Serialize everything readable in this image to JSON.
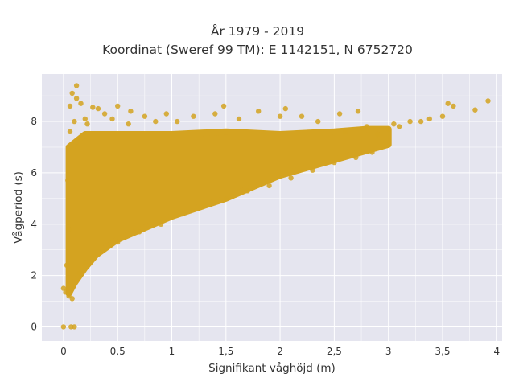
{
  "chart_data": {
    "type": "scatter",
    "title": "År 1979 - 2019",
    "subtitle": "Koordinat (Sweref 99 TM): E 1142151, N 6752720",
    "xlabel": "Signifikant våghöjd (m)",
    "ylabel": "Vågperiod (s)",
    "xlim": [
      -0.2,
      4.05
    ],
    "ylim": [
      -0.55,
      9.85
    ],
    "x_ticks": [
      0,
      0.5,
      1,
      1.5,
      2,
      2.5,
      3,
      3.5,
      4
    ],
    "x_tick_labels": [
      "0",
      "0,5",
      "1",
      "1,5",
      "2",
      "2,5",
      "3",
      "3,5",
      "4"
    ],
    "y_ticks": [
      0,
      2,
      4,
      6,
      8
    ],
    "y_tick_labels": [
      "0",
      "2",
      "4",
      "6",
      "8"
    ],
    "grid": true,
    "colors": {
      "marker": "#d4a320",
      "plot_background": "#e5e5ef",
      "grid": "#ffffff"
    },
    "points": [
      {
        "x": 0.0,
        "y": 1.5
      },
      {
        "x": 0.0,
        "y": 0.0
      },
      {
        "x": 0.02,
        "y": 1.35
      },
      {
        "x": 0.03,
        "y": 2.4
      },
      {
        "x": 0.05,
        "y": 1.2
      },
      {
        "x": 0.05,
        "y": 3.8
      },
      {
        "x": 0.04,
        "y": 5.7
      },
      {
        "x": 0.06,
        "y": 7.6
      },
      {
        "x": 0.07,
        "y": 0.0
      },
      {
        "x": 0.08,
        "y": 9.1
      },
      {
        "x": 0.06,
        "y": 8.6
      },
      {
        "x": 0.08,
        "y": 1.1
      },
      {
        "x": 0.1,
        "y": 8.0
      },
      {
        "x": 0.1,
        "y": 0.0
      },
      {
        "x": 0.12,
        "y": 9.4
      },
      {
        "x": 0.12,
        "y": 8.9
      },
      {
        "x": 0.13,
        "y": 7.0
      },
      {
        "x": 0.15,
        "y": 2.1
      },
      {
        "x": 0.16,
        "y": 8.7
      },
      {
        "x": 0.2,
        "y": 8.1
      },
      {
        "x": 0.2,
        "y": 2.5
      },
      {
        "x": 0.22,
        "y": 7.9
      },
      {
        "x": 0.27,
        "y": 8.55
      },
      {
        "x": 0.3,
        "y": 2.8
      },
      {
        "x": 0.32,
        "y": 8.5
      },
      {
        "x": 0.38,
        "y": 8.3
      },
      {
        "x": 0.45,
        "y": 8.1
      },
      {
        "x": 0.5,
        "y": 8.6
      },
      {
        "x": 0.5,
        "y": 3.3
      },
      {
        "x": 0.6,
        "y": 7.9
      },
      {
        "x": 0.62,
        "y": 8.4
      },
      {
        "x": 0.7,
        "y": 3.7
      },
      {
        "x": 0.75,
        "y": 8.2
      },
      {
        "x": 0.85,
        "y": 8.0
      },
      {
        "x": 0.9,
        "y": 4.0
      },
      {
        "x": 0.95,
        "y": 8.3
      },
      {
        "x": 1.05,
        "y": 8.0
      },
      {
        "x": 1.1,
        "y": 4.4
      },
      {
        "x": 1.2,
        "y": 8.2
      },
      {
        "x": 1.3,
        "y": 4.7
      },
      {
        "x": 1.4,
        "y": 8.3
      },
      {
        "x": 1.48,
        "y": 8.6
      },
      {
        "x": 1.5,
        "y": 5.0
      },
      {
        "x": 1.62,
        "y": 8.1
      },
      {
        "x": 1.7,
        "y": 5.3
      },
      {
        "x": 1.8,
        "y": 8.4
      },
      {
        "x": 1.9,
        "y": 5.5
      },
      {
        "x": 2.0,
        "y": 8.2
      },
      {
        "x": 2.05,
        "y": 8.5
      },
      {
        "x": 2.1,
        "y": 5.8
      },
      {
        "x": 2.2,
        "y": 8.2
      },
      {
        "x": 2.3,
        "y": 6.1
      },
      {
        "x": 2.35,
        "y": 8.0
      },
      {
        "x": 2.5,
        "y": 6.4
      },
      {
        "x": 2.55,
        "y": 8.3
      },
      {
        "x": 2.6,
        "y": 7.6
      },
      {
        "x": 2.7,
        "y": 6.6
      },
      {
        "x": 2.72,
        "y": 8.4
      },
      {
        "x": 2.8,
        "y": 7.8
      },
      {
        "x": 2.85,
        "y": 6.8
      },
      {
        "x": 2.9,
        "y": 7.5
      },
      {
        "x": 3.0,
        "y": 7.7
      },
      {
        "x": 3.05,
        "y": 7.9
      },
      {
        "x": 3.1,
        "y": 7.8
      },
      {
        "x": 3.2,
        "y": 8.0
      },
      {
        "x": 3.3,
        "y": 8.0
      },
      {
        "x": 3.38,
        "y": 8.1
      },
      {
        "x": 3.5,
        "y": 8.2
      },
      {
        "x": 3.55,
        "y": 8.7
      },
      {
        "x": 3.6,
        "y": 8.6
      },
      {
        "x": 3.8,
        "y": 8.45
      },
      {
        "x": 3.92,
        "y": 8.8
      }
    ],
    "density_band": {
      "description_units": "upper and lower envelope of the dense point cloud, in data units",
      "upper": [
        [
          0.05,
          7.0
        ],
        [
          0.2,
          7.5
        ],
        [
          0.5,
          7.5
        ],
        [
          1.0,
          7.5
        ],
        [
          1.5,
          7.6
        ],
        [
          2.0,
          7.5
        ],
        [
          2.5,
          7.6
        ],
        [
          2.8,
          7.7
        ],
        [
          3.0,
          7.7
        ]
      ],
      "lower": [
        [
          3.0,
          7.1
        ],
        [
          2.5,
          6.5
        ],
        [
          2.0,
          5.9
        ],
        [
          1.5,
          5.0
        ],
        [
          1.0,
          4.3
        ],
        [
          0.5,
          3.4
        ],
        [
          0.3,
          2.8
        ],
        [
          0.2,
          2.3
        ],
        [
          0.1,
          1.7
        ],
        [
          0.05,
          1.3
        ]
      ]
    }
  }
}
